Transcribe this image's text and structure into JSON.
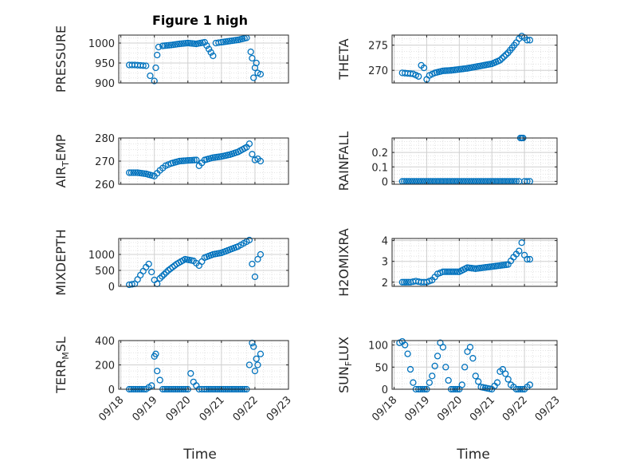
{
  "figure": {
    "title": "Figure 1 high"
  },
  "colors": {
    "marker": "#0072BD",
    "axis": "#262626",
    "grid": "#dcdcdc"
  },
  "chart_data": [
    {
      "type": "scatter",
      "panel": "PRESSURE",
      "ylabel": "PRESSURE",
      "ylabel_sub": "",
      "ylim": [
        900,
        1020
      ],
      "yticks": [
        900,
        950,
        1000
      ],
      "ytick_labels": [
        "900",
        "950",
        "1000"
      ],
      "x": [
        "09/18 06:00",
        "09/18 10:00",
        "09/18 14:00",
        "09/18 18:00",
        "09/18 21:00",
        "09/19 00:00",
        "09/19 01:00",
        "09/19 02:00",
        "09/19 03:00",
        "09/19 06:00",
        "09/19 12:00",
        "09/19 18:00",
        "09/20 00:00",
        "09/20 06:00",
        "09/20 12:00",
        "09/20 18:00",
        "09/20 20:00",
        "09/20 22:00",
        "09/21 00:00",
        "09/21 06:00",
        "09/21 12:00",
        "09/21 18:00",
        "09/21 21:00",
        "09/21 22:00",
        "09/21 23:00",
        "09/22 00:00",
        "09/22 01:00",
        "09/22 02:00",
        "09/22 04:00"
      ],
      "values": [
        945,
        945,
        944,
        943,
        918,
        905,
        938,
        970,
        990,
        993,
        995,
        998,
        1000,
        998,
        1002,
        968,
        1000,
        1001,
        1002,
        1005,
        1008,
        1013,
        978,
        962,
        913,
        938,
        950,
        925,
        922
      ]
    },
    {
      "type": "scatter",
      "panel": "THETA",
      "ylabel": "THETA",
      "ylabel_sub": "",
      "ylim": [
        267.5,
        277
      ],
      "yticks": [
        270,
        275
      ],
      "ytick_labels": [
        "270",
        "275"
      ],
      "x": [
        "09/18 06:00",
        "09/18 10:00",
        "09/18 14:00",
        "09/18 18:00",
        "09/18 20:00",
        "09/18 22:00",
        "09/19 00:00",
        "09/19 02:00",
        "09/19 06:00",
        "09/19 12:00",
        "09/19 18:00",
        "09/20 00:00",
        "09/20 06:00",
        "09/20 12:00",
        "09/20 18:00",
        "09/21 00:00",
        "09/21 06:00",
        "09/21 12:00",
        "09/21 18:00",
        "09/21 20:00",
        "09/21 22:00",
        "09/22 00:00",
        "09/22 02:00",
        "09/22 04:00"
      ],
      "values": [
        269.5,
        269.4,
        269.3,
        268.8,
        271,
        270.5,
        268.2,
        269,
        269.5,
        269.9,
        270,
        270.2,
        270.4,
        270.7,
        271,
        271.3,
        272,
        273.5,
        275.5,
        276.3,
        276.8,
        276.5,
        276,
        276
      ]
    },
    {
      "type": "scatter",
      "panel": "AIR_TEMP",
      "ylabel": "AIR",
      "ylabel_sub": "T",
      "ylabel_after": "EMP",
      "ylim": [
        260,
        280
      ],
      "yticks": [
        260,
        270,
        280
      ],
      "ytick_labels": [
        "260",
        "270",
        "280"
      ],
      "x": [
        "09/18 06:00",
        "09/18 12:00",
        "09/18 18:00",
        "09/19 00:00",
        "09/19 04:00",
        "09/19 08:00",
        "09/19 12:00",
        "09/19 18:00",
        "09/20 00:00",
        "09/20 06:00",
        "09/20 08:00",
        "09/20 12:00",
        "09/20 18:00",
        "09/21 00:00",
        "09/21 06:00",
        "09/21 12:00",
        "09/21 18:00",
        "09/21 20:00",
        "09/21 22:00",
        "09/22 00:00",
        "09/22 02:00",
        "09/22 04:00"
      ],
      "values": [
        265,
        265,
        264.5,
        263.5,
        266,
        268,
        269,
        270,
        270.3,
        270.5,
        268,
        270.5,
        271.5,
        272,
        272.8,
        274,
        276,
        277.5,
        273,
        270.5,
        271,
        270
      ]
    },
    {
      "type": "scatter",
      "panel": "RAINFALL",
      "ylabel": "RAINFALL",
      "ylabel_sub": "",
      "ylim": [
        -0.02,
        0.3
      ],
      "yticks": [
        0,
        0.1,
        0.2
      ],
      "ytick_labels": [
        "0",
        "0.1",
        "0.2"
      ],
      "x": [
        "09/18 06:00",
        "09/18 12:00",
        "09/18 18:00",
        "09/19 00:00",
        "09/19 06:00",
        "09/19 12:00",
        "09/19 18:00",
        "09/20 00:00",
        "09/20 06:00",
        "09/20 12:00",
        "09/20 18:00",
        "09/21 00:00",
        "09/21 06:00",
        "09/21 12:00",
        "09/21 18:00",
        "09/21 20:00",
        "09/21 21:00",
        "09/21 22:00",
        "09/21 23:00",
        "09/22 00:00",
        "09/22 02:00",
        "09/22 04:00"
      ],
      "values": [
        0,
        0,
        0,
        0,
        0,
        0,
        0,
        0,
        0,
        0,
        0,
        0,
        0,
        0,
        0,
        0,
        0.3,
        0.3,
        0.3,
        0,
        0,
        0
      ]
    },
    {
      "type": "scatter",
      "panel": "MIXDEPTH",
      "ylabel": "MIXDEPTH",
      "ylabel_sub": "",
      "ylim": [
        0,
        1500
      ],
      "yticks": [
        0,
        500,
        1000
      ],
      "ytick_labels": [
        "0",
        "500",
        "1000"
      ],
      "x": [
        "09/18 06:00",
        "09/18 10:00",
        "09/18 14:00",
        "09/18 18:00",
        "09/18 20:00",
        "09/19 00:00",
        "09/19 02:00",
        "09/19 04:00",
        "09/19 10:00",
        "09/19 16:00",
        "09/19 22:00",
        "09/20 04:00",
        "09/20 08:00",
        "09/20 12:00",
        "09/20 18:00",
        "09/21 00:00",
        "09/21 06:00",
        "09/21 12:00",
        "09/21 16:00",
        "09/21 20:00",
        "09/21 22:00",
        "09/22 00:00",
        "09/22 02:00",
        "09/22 04:00"
      ],
      "values": [
        50,
        80,
        350,
        600,
        700,
        200,
        80,
        250,
        500,
        700,
        850,
        800,
        650,
        900,
        1000,
        1050,
        1150,
        1250,
        1350,
        1450,
        700,
        300,
        850,
        1000
      ]
    },
    {
      "type": "scatter",
      "panel": "H2OMIXRA",
      "ylabel": "H2OMIXRA",
      "ylabel_sub": "",
      "ylim": [
        1.8,
        4.1
      ],
      "yticks": [
        2,
        3,
        4
      ],
      "ytick_labels": [
        "2",
        "3",
        "4"
      ],
      "x": [
        "09/18 06:00",
        "09/18 12:00",
        "09/18 16:00",
        "09/18 20:00",
        "09/19 00:00",
        "09/19 04:00",
        "09/19 08:00",
        "09/19 12:00",
        "09/19 18:00",
        "09/20 00:00",
        "09/20 06:00",
        "09/20 12:00",
        "09/20 18:00",
        "09/21 00:00",
        "09/21 06:00",
        "09/21 12:00",
        "09/21 16:00",
        "09/21 20:00",
        "09/21 22:00",
        "09/22 00:00",
        "09/22 02:00",
        "09/22 04:00"
      ],
      "values": [
        2,
        2,
        2.05,
        2,
        2,
        2.1,
        2.4,
        2.5,
        2.5,
        2.5,
        2.7,
        2.65,
        2.7,
        2.75,
        2.8,
        2.85,
        3.2,
        3.5,
        3.9,
        3.3,
        3.1,
        3.1
      ]
    },
    {
      "type": "scatter",
      "panel": "TERR_MSL",
      "ylabel": "TERR",
      "ylabel_sub": "M",
      "ylabel_after": "SL",
      "ylim": [
        0,
        400
      ],
      "yticks": [
        0,
        200,
        400
      ],
      "ytick_labels": [
        "0",
        "200",
        "400"
      ],
      "x": [
        "09/18 06:00",
        "09/18 12:00",
        "09/18 18:00",
        "09/18 22:00",
        "09/19 00:00",
        "09/19 01:00",
        "09/19 02:00",
        "09/19 06:00",
        "09/19 12:00",
        "09/19 18:00",
        "09/20 00:00",
        "09/20 02:00",
        "09/20 04:00",
        "09/20 08:00",
        "09/20 12:00",
        "09/20 18:00",
        "09/21 00:00",
        "09/21 06:00",
        "09/21 12:00",
        "09/21 18:00",
        "09/21 20:00",
        "09/21 22:00",
        "09/21 23:00",
        "09/22 00:00",
        "09/22 01:00",
        "09/22 02:00",
        "09/22 04:00"
      ],
      "values": [
        0,
        0,
        0,
        30,
        270,
        290,
        150,
        0,
        0,
        0,
        0,
        130,
        60,
        0,
        0,
        0,
        0,
        0,
        0,
        0,
        200,
        380,
        350,
        150,
        250,
        200,
        290
      ]
    },
    {
      "type": "scatter",
      "panel": "SUN_FLUX",
      "ylabel": "SUN",
      "ylabel_sub": "F",
      "ylabel_after": "LUX",
      "ylim": [
        0,
        110
      ],
      "yticks": [
        0,
        50,
        100
      ],
      "ytick_labels": [
        "0",
        "50",
        "100"
      ],
      "x": [
        "09/18 04:00",
        "09/18 06:00",
        "09/18 08:00",
        "09/18 10:00",
        "09/18 12:00",
        "09/18 14:00",
        "09/18 16:00",
        "09/18 18:00",
        "09/19 00:00",
        "09/19 04:00",
        "09/19 08:00",
        "09/19 10:00",
        "09/19 12:00",
        "09/19 14:00",
        "09/19 16:00",
        "09/19 18:00",
        "09/20 00:00",
        "09/20 02:00",
        "09/20 04:00",
        "09/20 06:00",
        "09/20 08:00",
        "09/20 10:00",
        "09/20 12:00",
        "09/20 16:00",
        "09/21 00:00",
        "09/21 04:00",
        "09/21 06:00",
        "09/21 08:00",
        "09/21 10:00",
        "09/21 14:00",
        "09/21 18:00",
        "09/22 00:00",
        "09/22 02:00",
        "09/22 04:00"
      ],
      "values": [
        105,
        108,
        100,
        80,
        45,
        15,
        0,
        0,
        0,
        30,
        75,
        105,
        95,
        50,
        20,
        0,
        0,
        10,
        50,
        85,
        95,
        70,
        30,
        5,
        0,
        15,
        40,
        45,
        35,
        10,
        0,
        0,
        5,
        10
      ]
    }
  ],
  "x_axis": {
    "range": [
      "09/17 22:30",
      "09/23 00:00"
    ],
    "ticks": [
      "09/18 00:00",
      "09/19 00:00",
      "09/20 00:00",
      "09/21 00:00",
      "09/22 00:00",
      "09/23 00:00"
    ],
    "tick_labels": [
      "09/18",
      "09/19",
      "09/20",
      "09/21",
      "09/22",
      "09/23"
    ],
    "label": "Time",
    "grid": true,
    "minor_grid": true
  }
}
